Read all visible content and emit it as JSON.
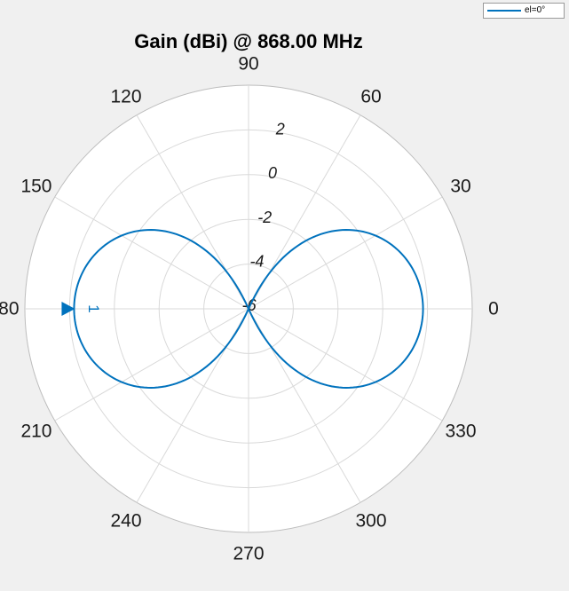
{
  "chart_data": {
    "type": "polar-line",
    "title": "Gain (dBi) @ 868.00 MHz",
    "angle_ticks": [
      "0",
      "30",
      "60",
      "90",
      "120",
      "150",
      "180",
      "210",
      "240",
      "270",
      "300",
      "330"
    ],
    "angle_unit": "degrees",
    "r_ticks": [
      "-6",
      "-4",
      "-2",
      "0",
      "2"
    ],
    "r_min": -6,
    "r_max": 4,
    "grid": true,
    "legend": {
      "position": "top-right",
      "entries": [
        "el=0°"
      ]
    },
    "marker": {
      "label": "1",
      "angle": 180,
      "value": 1.8
    },
    "series": [
      {
        "name": "el=0°",
        "color": "#0072bd",
        "peak_dBi": 1.8,
        "null_dBi": -6,
        "pattern": "half-wave dipole, peaks at 0° and 180°, nulls at 90° and 270°"
      }
    ]
  }
}
